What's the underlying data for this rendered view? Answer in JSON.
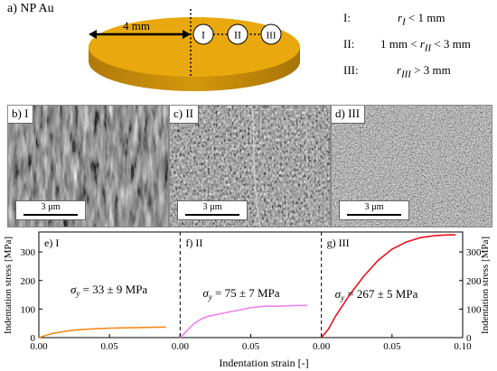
{
  "schematic": {
    "title": "a) NP Au",
    "distance_label": "4 mm",
    "zones": [
      "I",
      "II",
      "III"
    ],
    "definitions": [
      {
        "roman": "I:",
        "prefix": "",
        "var": "r",
        "sub": "I",
        "suffix": " < 1 mm"
      },
      {
        "roman": "II:",
        "prefix": "1 mm < ",
        "var": "r",
        "sub": "II",
        "suffix": " < 3 mm"
      },
      {
        "roman": "III:",
        "prefix": "",
        "var": "r",
        "sub": "III",
        "suffix": " > 3 mm"
      }
    ],
    "disk_color": "#e8a80e"
  },
  "micrographs": [
    {
      "label": "b) I",
      "scale": "3 µm"
    },
    {
      "label": "c) II",
      "scale": "3 µm"
    },
    {
      "label": "d) III",
      "scale": "3 µm"
    }
  ],
  "chart_data": {
    "type": "line",
    "xlabel": "Indentation strain [-]",
    "ylabel_left": "Indentation stress [MPa]",
    "ylabel_right": "Indentation stress [MPa]",
    "ylim": [
      0,
      370
    ],
    "yticks": [
      0,
      100,
      200,
      300
    ],
    "panels": [
      {
        "label": "e) I",
        "xlim": [
          0,
          0.1
        ],
        "xticks": [
          "0.00",
          "0.05",
          "0.10"
        ],
        "color": "#f08c1e",
        "annotation": {
          "sym": "σ",
          "sub": "y",
          "text": " = 33 ± 9 MPa"
        },
        "x": [
          0,
          0.005,
          0.01,
          0.02,
          0.03,
          0.04,
          0.05,
          0.06,
          0.07,
          0.08,
          0.09
        ],
        "y": [
          0,
          8,
          15,
          23,
          28,
          31,
          33,
          34,
          35,
          36,
          37
        ]
      },
      {
        "label": "f) II",
        "xlim": [
          0,
          0.1
        ],
        "xticks": [
          "0.00",
          "0.05",
          "0.10"
        ],
        "color": "#ee82ee",
        "annotation": {
          "sym": "σ",
          "sub": "y",
          "text": " = 75 ± 7 MPa"
        },
        "x": [
          0,
          0.005,
          0.01,
          0.015,
          0.02,
          0.03,
          0.04,
          0.05,
          0.06,
          0.07,
          0.08,
          0.09
        ],
        "y": [
          0,
          25,
          50,
          65,
          75,
          85,
          95,
          105,
          110,
          110,
          112,
          113
        ]
      },
      {
        "label": "g) III",
        "xlim": [
          0,
          0.1
        ],
        "xticks": [
          "0.00",
          "0.05",
          "0.10"
        ],
        "color": "#e8141e",
        "annotation": {
          "sym": "σ",
          "sub": "y",
          "text": " = 267 ± 5 MPa"
        },
        "x": [
          0,
          0.005,
          0.01,
          0.02,
          0.03,
          0.04,
          0.05,
          0.06,
          0.07,
          0.08,
          0.09,
          0.095
        ],
        "y": [
          0,
          30,
          75,
          150,
          215,
          270,
          310,
          335,
          350,
          357,
          360,
          360
        ]
      }
    ]
  }
}
